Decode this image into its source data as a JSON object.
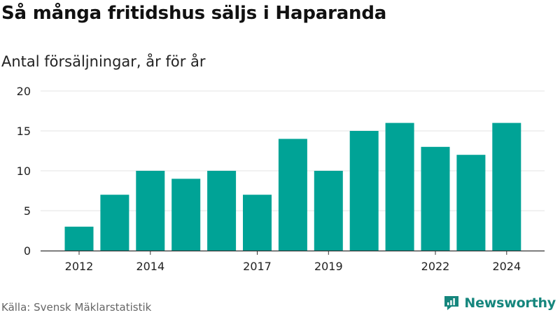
{
  "title": "Så många fritidshus säljs i Haparanda",
  "subtitle": "Antal försäljningar, år för år",
  "source": "Källa: Svensk Mäklarstatistik",
  "brand": "Newsworthy",
  "colors": {
    "bar": "#00a396",
    "brand": "#15867d",
    "grid": "#e3e3e3",
    "axis": "#333333"
  },
  "chart_data": {
    "type": "bar",
    "categories": [
      "2012",
      "2013",
      "2014",
      "2015",
      "2016",
      "2017",
      "2018",
      "2019",
      "2020",
      "2021",
      "2022",
      "2023",
      "2024"
    ],
    "values": [
      3,
      7,
      10,
      9,
      10,
      7,
      14,
      10,
      15,
      16,
      13,
      12,
      16
    ],
    "tick_labels": [
      "2012",
      "2014",
      "2017",
      "2019",
      "2022",
      "2024"
    ],
    "yticks": [
      0,
      5,
      10,
      15,
      20
    ],
    "ylim": [
      0,
      20
    ],
    "grid": true,
    "legend": "none"
  }
}
